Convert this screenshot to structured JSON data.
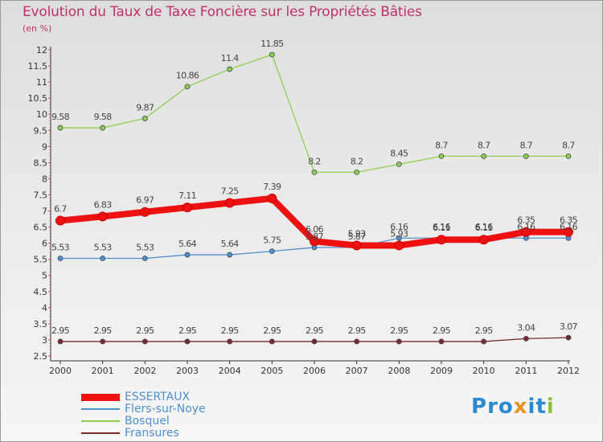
{
  "title": "Evolution du Taux de Taxe Foncière sur les Propriétés Bâties",
  "subtitle": "(en %)",
  "logo": {
    "letters": [
      "P",
      "r",
      "o",
      "x",
      "i",
      "t",
      "i"
    ],
    "colors": [
      "#2a8ad1",
      "#2a8ad1",
      "#2a8ad1",
      "#e8931e",
      "#2a8ad1",
      "#2a8ad1",
      "#8cbf3f"
    ]
  },
  "chart_data": {
    "type": "line",
    "title": "Evolution du Taux de Taxe Foncière sur les Propriétés Bâties",
    "ylabel": "(en %)",
    "xlabel": "",
    "x": [
      "2000",
      "2001",
      "2002",
      "2003",
      "2004",
      "2005",
      "2006",
      "2007",
      "2008",
      "2009",
      "2010",
      "2011",
      "2012"
    ],
    "ylim": [
      2.5,
      12
    ],
    "yticks": [
      "2.5",
      "3",
      "3.5",
      "4",
      "4.5",
      "5",
      "5.5",
      "6",
      "6.5",
      "7",
      "7.5",
      "8",
      "8.5",
      "9",
      "9.5",
      "10",
      "10.5",
      "11",
      "11.5",
      "12"
    ],
    "grid": false,
    "legend_position": "bottom-left",
    "series": [
      {
        "name": "ESSERTAUX",
        "color": "#ee1111",
        "thick": true,
        "values": [
          6.7,
          6.83,
          6.97,
          7.11,
          7.25,
          7.39,
          6.06,
          5.93,
          5.93,
          6.11,
          6.11,
          6.35,
          6.35
        ],
        "labels": [
          "6.7",
          "6.83",
          "6.97",
          "7.11",
          "7.25",
          "7.39",
          "6.06",
          "5.93",
          "5.93",
          "6.11",
          "6.11",
          "6.35",
          "6.35"
        ]
      },
      {
        "name": "Flers-sur-Noye",
        "color": "#4f90cf",
        "thick": false,
        "values": [
          5.53,
          5.53,
          5.53,
          5.64,
          5.64,
          5.75,
          5.87,
          5.87,
          6.16,
          6.16,
          6.16,
          6.16,
          6.16
        ],
        "labels": [
          "5.53",
          "5.53",
          "5.53",
          "5.64",
          "5.64",
          "5.75",
          "5.87",
          "5.87",
          "6.16",
          "6.16",
          "6.16",
          "6.16",
          "6.16"
        ]
      },
      {
        "name": "Bosquel",
        "color": "#8fcf50",
        "thick": false,
        "values": [
          9.58,
          9.58,
          9.87,
          10.86,
          11.4,
          11.85,
          8.2,
          8.2,
          8.45,
          8.7,
          8.7,
          8.7,
          8.7
        ],
        "labels": [
          "9.58",
          "9.58",
          "9.87",
          "10.86",
          "11.4",
          "11.85",
          "8.2",
          "8.2",
          "8.45",
          "8.7",
          "8.7",
          "8.7",
          "8.7"
        ]
      },
      {
        "name": "Fransures",
        "color": "#7a2a2a",
        "thick": false,
        "values": [
          2.95,
          2.95,
          2.95,
          2.95,
          2.95,
          2.95,
          2.95,
          2.95,
          2.95,
          2.95,
          2.95,
          3.04,
          3.07
        ],
        "labels": [
          "2.95",
          "2.95",
          "2.95",
          "2.95",
          "2.95",
          "2.95",
          "2.95",
          "2.95",
          "2.95",
          "2.95",
          "2.95",
          "3.04",
          "3.07"
        ]
      }
    ]
  }
}
